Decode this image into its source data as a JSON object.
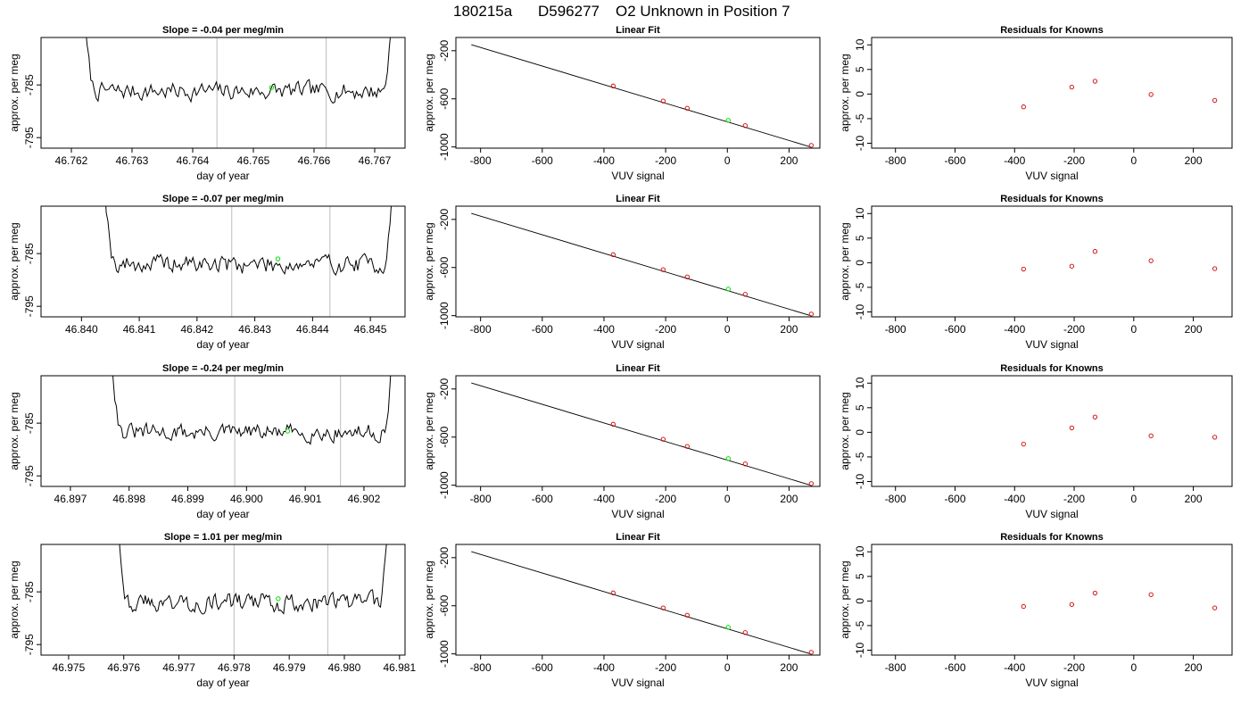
{
  "figure": {
    "title_parts": [
      "180215a",
      "D596277",
      "O2 Unknown in Position  7"
    ]
  },
  "colors": {
    "known_points": "#d00000",
    "unknown_point": "#00e000",
    "marker_lines": "#c8c8c8",
    "trace": "#000000"
  },
  "chart_data": [
    {
      "row": 1,
      "type": "line",
      "title": "Slope =  -0.04  per meg/min",
      "xlabel": "day of year",
      "ylabel": "approx. per meg",
      "xlim": [
        46.7615,
        46.7675
      ],
      "ylim": [
        -797,
        -776
      ],
      "xticks": [
        "46.762",
        "46.763",
        "46.764",
        "46.765",
        "46.766",
        "46.767"
      ],
      "yticks": [
        "-785",
        "-795"
      ],
      "marker_lines_x": [
        46.7644,
        46.7662
      ],
      "unknown_point": {
        "x": 46.7653,
        "y": -785.5
      },
      "trace_start_x": 46.7622,
      "trace_end_x": 46.7673,
      "trace_level": -786.2,
      "trace_noise": 1.9,
      "trace_seed": 7
    },
    {
      "type": "line",
      "title": "Linear Fit",
      "xlabel": "VUV signal",
      "ylabel": "approx. per meg",
      "xlim": [
        -880,
        300
      ],
      "ylim": [
        -1010,
        -90
      ],
      "xticks": [
        "-800",
        "-600",
        "-400",
        "-200",
        "0",
        "200"
      ],
      "yticks": [
        "-200",
        "-600",
        "-1000"
      ],
      "fit_line": {
        "x": [
          -830,
          270
        ],
        "y": [
          -150,
          -1000
        ]
      },
      "knowns": {
        "x": [
          -370,
          -208,
          -130,
          58,
          272
        ],
        "y": [
          -493,
          -618,
          -678,
          -823,
          -987
        ]
      },
      "unknown": {
        "x": 3,
        "y": -779
      }
    },
    {
      "type": "scatter",
      "title": "Residuals for Knowns",
      "xlabel": "VUV signal",
      "ylabel": "approx. per meg",
      "xlim": [
        -880,
        330
      ],
      "ylim": [
        -11,
        11.5
      ],
      "xticks": [
        "-800",
        "-600",
        "-400",
        "-200",
        "0",
        "200"
      ],
      "yticks": [
        "-10",
        "-5",
        "0",
        "5",
        "10"
      ],
      "x": [
        -370,
        -208,
        -130,
        58,
        272
      ],
      "y": [
        -2.6,
        1.4,
        2.6,
        -0.1,
        -1.3
      ]
    },
    {
      "row": 2,
      "type": "line",
      "title": "Slope =  -0.07  per meg/min",
      "xlabel": "day of year",
      "ylabel": "approx. per meg",
      "xlim": [
        46.8393,
        46.8456
      ],
      "ylim": [
        -797,
        -776
      ],
      "xticks": [
        "46.840",
        "46.841",
        "46.842",
        "46.843",
        "46.844",
        "46.845"
      ],
      "yticks": [
        "-785",
        "-795"
      ],
      "marker_lines_x": [
        46.8426,
        46.8443
      ],
      "unknown_point": {
        "x": 46.8434,
        "y": -786.0
      },
      "trace_start_x": 46.8404,
      "trace_end_x": 46.8454,
      "trace_level": -787.0,
      "trace_noise": 2.0,
      "trace_seed": 19
    },
    {
      "type": "line",
      "title": "Linear Fit",
      "xlabel": "VUV signal",
      "ylabel": "approx. per meg",
      "xlim": [
        -880,
        300
      ],
      "ylim": [
        -1010,
        -90
      ],
      "xticks": [
        "-800",
        "-600",
        "-400",
        "-200",
        "0",
        "200"
      ],
      "yticks": [
        "-200",
        "-600",
        "-1000"
      ],
      "fit_line": {
        "x": [
          -830,
          270
        ],
        "y": [
          -150,
          -1000
        ]
      },
      "knowns": {
        "x": [
          -370,
          -208,
          -130,
          58,
          272
        ],
        "y": [
          -493,
          -618,
          -678,
          -823,
          -987
        ]
      },
      "unknown": {
        "x": 3,
        "y": -779
      }
    },
    {
      "type": "scatter",
      "title": "Residuals for Knowns",
      "xlabel": "VUV signal",
      "ylabel": "approx. per meg",
      "xlim": [
        -880,
        330
      ],
      "ylim": [
        -11,
        11.5
      ],
      "xticks": [
        "-800",
        "-600",
        "-400",
        "-200",
        "0",
        "200"
      ],
      "yticks": [
        "-10",
        "-5",
        "0",
        "5",
        "10"
      ],
      "x": [
        -370,
        -208,
        -130,
        58,
        272
      ],
      "y": [
        -1.3,
        -0.7,
        2.3,
        0.4,
        -1.2
      ]
    },
    {
      "row": 3,
      "type": "line",
      "title": "Slope =  -0.24  per meg/min",
      "xlabel": "day of year",
      "ylabel": "approx. per meg",
      "xlim": [
        46.8965,
        46.9027
      ],
      "ylim": [
        -797,
        -776
      ],
      "xticks": [
        "46.897",
        "46.898",
        "46.899",
        "46.900",
        "46.901",
        "46.902"
      ],
      "yticks": [
        "-785",
        "-795"
      ],
      "marker_lines_x": [
        46.8998,
        46.9016
      ],
      "unknown_point": {
        "x": 46.9007,
        "y": -786.5
      },
      "trace_start_x": 46.8977,
      "trace_end_x": 46.9025,
      "trace_level": -786.8,
      "trace_noise": 1.8,
      "trace_seed": 31
    },
    {
      "type": "line",
      "title": "Linear Fit",
      "xlabel": "VUV signal",
      "ylabel": "approx. per meg",
      "xlim": [
        -880,
        300
      ],
      "ylim": [
        -1010,
        -90
      ],
      "xticks": [
        "-800",
        "-600",
        "-400",
        "-200",
        "0",
        "200"
      ],
      "yticks": [
        "-200",
        "-600",
        "-1000"
      ],
      "fit_line": {
        "x": [
          -830,
          270
        ],
        "y": [
          -150,
          -1000
        ]
      },
      "knowns": {
        "x": [
          -370,
          -208,
          -130,
          58,
          272
        ],
        "y": [
          -493,
          -618,
          -678,
          -823,
          -987
        ]
      },
      "unknown": {
        "x": 3,
        "y": -779
      }
    },
    {
      "type": "scatter",
      "title": "Residuals for Knowns",
      "xlabel": "VUV signal",
      "ylabel": "approx. per meg",
      "xlim": [
        -880,
        330
      ],
      "ylim": [
        -11,
        11.5
      ],
      "xticks": [
        "-800",
        "-600",
        "-400",
        "-200",
        "0",
        "200"
      ],
      "yticks": [
        "-10",
        "-5",
        "0",
        "5",
        "10"
      ],
      "x": [
        -370,
        -208,
        -130,
        58,
        272
      ],
      "y": [
        -2.4,
        0.9,
        3.1,
        -0.7,
        -1.0
      ]
    },
    {
      "row": 4,
      "type": "line",
      "title": "Slope =  1.01  per meg/min",
      "xlabel": "day of year",
      "ylabel": "approx. per meg",
      "xlim": [
        46.9745,
        46.9811
      ],
      "ylim": [
        -797,
        -776
      ],
      "xticks": [
        "46.975",
        "46.976",
        "46.977",
        "46.978",
        "46.979",
        "46.980",
        "46.981"
      ],
      "yticks": [
        "-785",
        "-795"
      ],
      "marker_lines_x": [
        46.978,
        46.9797
      ],
      "unknown_point": {
        "x": 46.9788,
        "y": -786.3
      },
      "trace_start_x": 46.9759,
      "trace_end_x": 46.9808,
      "trace_level": -787.0,
      "trace_noise": 2.0,
      "trace_seed": 43
    },
    {
      "type": "line",
      "title": "Linear Fit",
      "xlabel": "VUV signal",
      "ylabel": "approx. per meg",
      "xlim": [
        -880,
        300
      ],
      "ylim": [
        -1010,
        -90
      ],
      "xticks": [
        "-800",
        "-600",
        "-400",
        "-200",
        "0",
        "200"
      ],
      "yticks": [
        "-200",
        "-600",
        "-1000"
      ],
      "fit_line": {
        "x": [
          -830,
          270
        ],
        "y": [
          -150,
          -1000
        ]
      },
      "knowns": {
        "x": [
          -370,
          -208,
          -130,
          58,
          272
        ],
        "y": [
          -493,
          -618,
          -678,
          -823,
          -987
        ]
      },
      "unknown": {
        "x": 3,
        "y": -779
      }
    },
    {
      "type": "scatter",
      "title": "Residuals for Knowns",
      "xlabel": "VUV signal",
      "ylabel": "approx. per meg",
      "xlim": [
        -880,
        330
      ],
      "ylim": [
        -11,
        11.5
      ],
      "xticks": [
        "-800",
        "-600",
        "-400",
        "-200",
        "0",
        "200"
      ],
      "yticks": [
        "-10",
        "-5",
        "0",
        "5",
        "10"
      ],
      "x": [
        -370,
        -208,
        -130,
        58,
        272
      ],
      "y": [
        -1.1,
        -0.7,
        1.6,
        1.3,
        -1.4
      ]
    }
  ]
}
